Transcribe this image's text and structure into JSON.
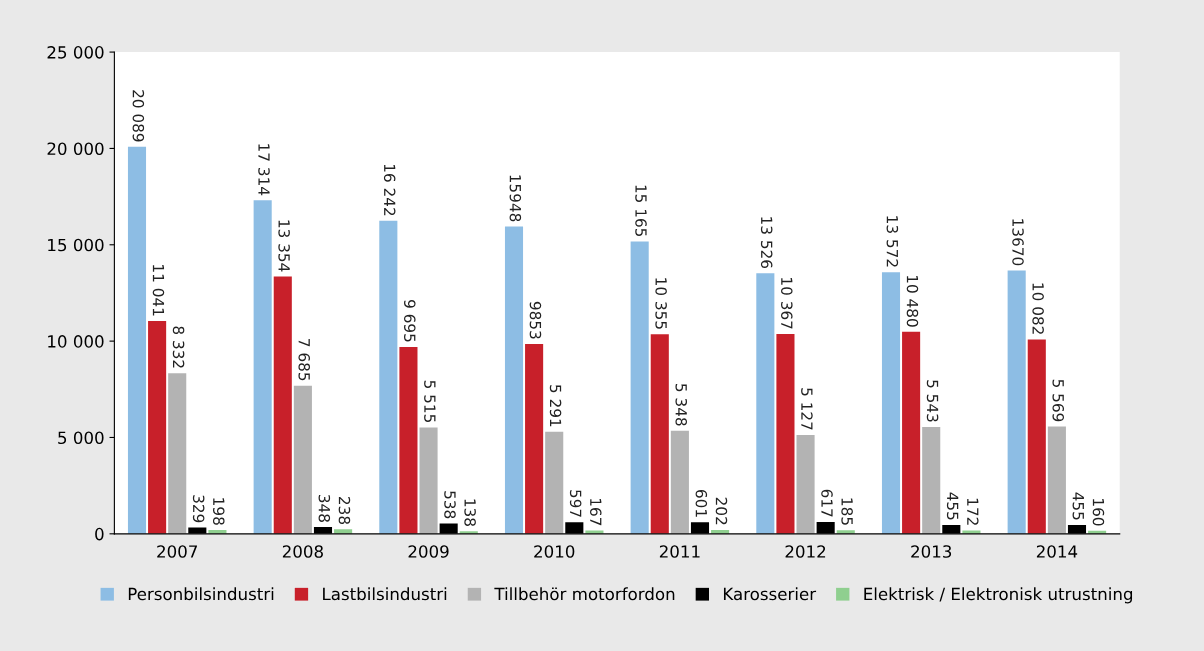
{
  "chart_data": {
    "type": "bar",
    "categories": [
      "2007",
      "2008",
      "2009",
      "2010",
      "2011",
      "2012",
      "2013",
      "2014"
    ],
    "ylim": [
      0,
      25000
    ],
    "yticks": [
      {
        "value": 0,
        "label": "0"
      },
      {
        "value": 5000,
        "label": "5 000"
      },
      {
        "value": 10000,
        "label": "10 000"
      },
      {
        "value": 15000,
        "label": "15 000"
      },
      {
        "value": 20000,
        "label": "20 000"
      },
      {
        "value": 25000,
        "label": "25 000"
      }
    ],
    "grid": false,
    "legend": "bottom",
    "series": [
      {
        "name": "Personbilsindustri",
        "color": "#8dbde4",
        "values": [
          20089,
          17314,
          16242,
          15948,
          15165,
          13526,
          13572,
          13670
        ],
        "value_labels": [
          "20 089",
          "17 314",
          "16 242",
          "15948",
          "15 165",
          "13 526",
          "13 572",
          "13670"
        ]
      },
      {
        "name": "Lastbilsindustri",
        "color": "#c8202a",
        "values": [
          11041,
          13354,
          9695,
          9853,
          10355,
          10367,
          10480,
          10082
        ],
        "value_labels": [
          "11 041",
          "13 354",
          "9 695",
          "9853",
          "10 355",
          "10 367",
          "10 480",
          "10 082"
        ]
      },
      {
        "name": "Tillbehör motorfordon",
        "color": "#b3b3b3",
        "values": [
          8332,
          7685,
          5515,
          5291,
          5348,
          5127,
          5543,
          5569
        ],
        "value_labels": [
          "8 332",
          "7 685",
          "5 515",
          "5 291",
          "5 348",
          "5 127",
          "5 543",
          "5 569"
        ]
      },
      {
        "name": "Karosserier",
        "color": "#000000",
        "values": [
          329,
          348,
          538,
          597,
          601,
          617,
          455,
          455
        ],
        "value_labels": [
          "329",
          "348",
          "538",
          "597",
          "601",
          "617",
          "455",
          "455"
        ]
      },
      {
        "name": "Elektrisk / Elektronisk utrustning",
        "color": "#8fcf8f",
        "values": [
          198,
          238,
          138,
          167,
          202,
          185,
          172,
          160
        ],
        "value_labels": [
          "198",
          "238",
          "138",
          "167",
          "202",
          "185",
          "172",
          "160"
        ]
      }
    ]
  }
}
